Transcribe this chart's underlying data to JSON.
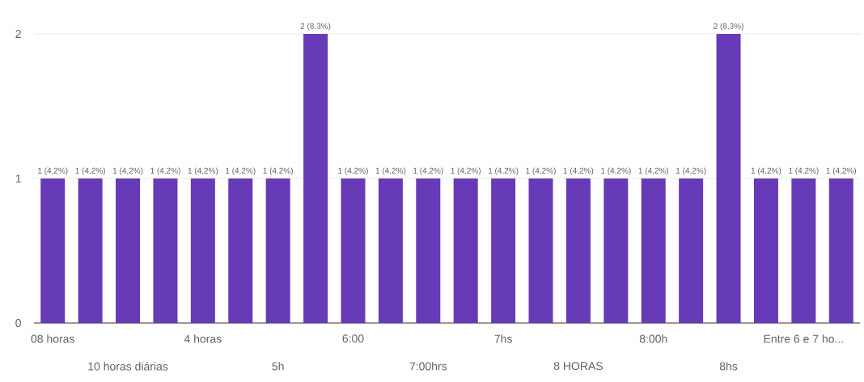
{
  "chart_data": {
    "type": "bar",
    "categories": [
      "08 horas",
      null,
      "10 horas diárias",
      null,
      "4 horas",
      null,
      "5h",
      null,
      "6:00",
      null,
      "7:00hrs",
      null,
      "7hs",
      null,
      "8 HORAS",
      null,
      "8:00h",
      null,
      "8hs",
      null,
      "Entre 6 e 7 ho...",
      null
    ],
    "values": [
      1,
      1,
      1,
      1,
      1,
      1,
      1,
      2,
      1,
      1,
      1,
      1,
      1,
      1,
      1,
      1,
      1,
      1,
      2,
      1,
      1,
      1
    ],
    "value_labels": [
      "1 (4,2%)",
      "1 (4,2%)",
      "1 (4,2%)",
      "1 (4,2%)",
      "1 (4,2%)",
      "1 (4,2%)",
      "1 (4,2%)",
      "2 (8,3%)",
      "1 (4,2%)",
      "1 (4,2%)",
      "1 (4,2%)",
      "1 (4,2%)",
      "1 (4,2%)",
      "1 (4,2%)",
      "1 (4,2%)",
      "1 (4,2%)",
      "1 (4,2%)",
      "1 (4,2%)",
      "2 (8,3%)",
      "1 (4,2%)",
      "1 (4,2%)",
      "1 (4,2%)"
    ],
    "color": "#673ab7",
    "ylim": [
      0,
      2
    ],
    "yticks": [
      0,
      1,
      2
    ],
    "grid": "y"
  }
}
